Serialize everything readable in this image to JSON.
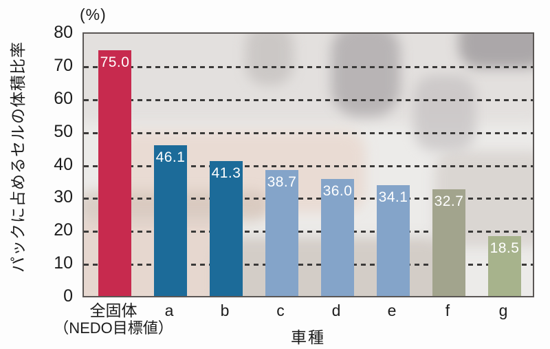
{
  "chart_data": {
    "type": "bar",
    "title": "",
    "unit_label": "(%)",
    "ylabel": "パックに占めるセルの体積比率",
    "xlabel": "車種",
    "ylim": [
      0,
      80
    ],
    "yticks": [
      0,
      10,
      20,
      30,
      40,
      50,
      60,
      70,
      80
    ],
    "grid": "horizontal dashed black lines at 10-70, drawn behind bars",
    "legend_position": "none",
    "categories": [
      "全固体（NEDO目標値）",
      "a",
      "b",
      "c",
      "d",
      "e",
      "f",
      "g"
    ],
    "category_label_lines": [
      [
        "全固体",
        "（NEDO目標値）"
      ],
      [
        "a"
      ],
      [
        "b"
      ],
      [
        "c"
      ],
      [
        "d"
      ],
      [
        "e"
      ],
      [
        "f"
      ],
      [
        "g"
      ]
    ],
    "values": [
      75.0,
      46.1,
      41.3,
      38.7,
      36.0,
      34.1,
      32.7,
      18.5
    ],
    "value_labels": [
      "75.0",
      "46.1",
      "41.3",
      "38.7",
      "36.0",
      "34.1",
      "32.7",
      "18.5"
    ],
    "bar_colors": [
      "#c72a4e",
      "#1c6b99",
      "#1c6b99",
      "#84a4c9",
      "#84a4c9",
      "#84a4c9",
      "#a2a48d",
      "#a7b38c"
    ],
    "value_label_color": "#ffffff",
    "axis_text_color": "#1c1c1c",
    "background_note": "faded grayscale photo watermark inside plot area"
  }
}
